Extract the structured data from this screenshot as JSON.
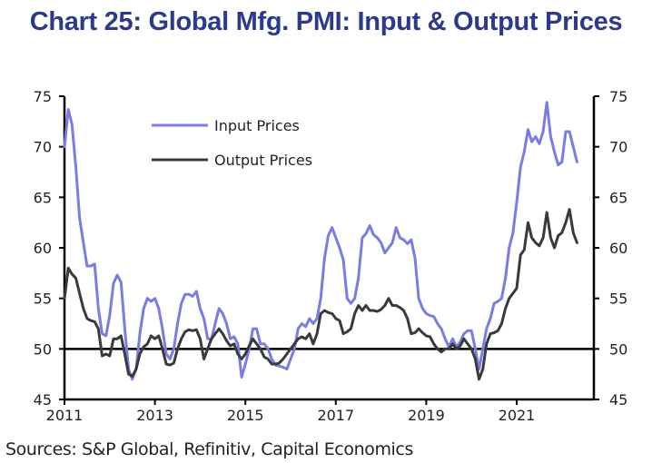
{
  "title": "Chart 25: Global Mfg. PMI: Input & Output Prices",
  "source": "Sources: S&P Global, Refinitiv, Capital Economics",
  "colors": {
    "input": "#7b7be6",
    "output": "#3a3a3a",
    "axis": "#000000",
    "title": "#2b3a8c"
  },
  "chart_data": {
    "type": "line",
    "title": "Chart 25: Global Mfg. PMI: Input & Output Prices",
    "xlabel": "",
    "ylabel": "",
    "x_start": "2011-01",
    "frequency": "monthly",
    "x_tick_labels": [
      "2011",
      "2013",
      "2015",
      "2017",
      "2019",
      "2021"
    ],
    "x_ticks_years": [
      2011,
      2013,
      2015,
      2017,
      2019,
      2021
    ],
    "ylim": [
      45,
      75
    ],
    "y_ticks": [
      45,
      50,
      55,
      60,
      65,
      70,
      75
    ],
    "y2lim": [
      45,
      75
    ],
    "y2_ticks": [
      45,
      50,
      55,
      60,
      65,
      70,
      75
    ],
    "reference_line": 50,
    "grid": false,
    "legend_position": "top-left",
    "series": [
      {
        "name": "Input Prices",
        "values": [
          70.0,
          73.7,
          72.2,
          68.0,
          63.0,
          60.5,
          58.2,
          58.2,
          58.4,
          54.0,
          51.5,
          51.3,
          53.3,
          56.5,
          57.3,
          56.6,
          52.0,
          48.0,
          47.0,
          48.0,
          51.5,
          54.0,
          55.0,
          54.7,
          55.0,
          54.0,
          52.0,
          49.5,
          49.0,
          50.0,
          52.5,
          54.5,
          55.4,
          55.4,
          55.2,
          55.7,
          54.0,
          53.0,
          51.0,
          51.0,
          52.5,
          54.0,
          53.5,
          52.5,
          51.0,
          51.2,
          50.5,
          47.2,
          48.5,
          50.0,
          52.0,
          52.0,
          50.5,
          50.5,
          50.0,
          49.0,
          48.4,
          48.3,
          48.2,
          48.0,
          49.0,
          50.0,
          52.0,
          52.5,
          52.2,
          53.0,
          52.5,
          53.0,
          55.0,
          59.0,
          61.2,
          62.0,
          61.0,
          60.0,
          58.8,
          55.0,
          54.5,
          55.0,
          57.0,
          61.0,
          61.4,
          62.2,
          61.3,
          61.0,
          60.5,
          59.5,
          60.0,
          60.5,
          62.0,
          61.0,
          60.8,
          60.4,
          60.8,
          59.0,
          55.0,
          54.0,
          53.5,
          53.3,
          53.2,
          52.5,
          52.0,
          51.0,
          50.2,
          51.0,
          50.2,
          50.7,
          51.5,
          51.8,
          51.8,
          50.0,
          48.0,
          50.0,
          52.0,
          53.0,
          54.5,
          54.7,
          55.0,
          57.0,
          60.0,
          61.5,
          64.5,
          68.0,
          69.5,
          71.7,
          70.5,
          71.0,
          70.3,
          71.5,
          74.4,
          71.0,
          69.5,
          68.2,
          68.5,
          71.5,
          71.5,
          70.0,
          68.5
        ]
      },
      {
        "name": "Output Prices",
        "values": [
          55.0,
          58.0,
          57.4,
          57.0,
          55.5,
          54.0,
          53.0,
          52.8,
          52.7,
          52.0,
          49.3,
          49.5,
          49.3,
          51.0,
          51.0,
          51.3,
          49.5,
          47.5,
          47.3,
          48.0,
          49.5,
          50.2,
          50.5,
          51.3,
          51.0,
          51.3,
          50.0,
          48.5,
          48.4,
          48.6,
          50.0,
          51.0,
          51.7,
          51.9,
          51.8,
          51.9,
          51.0,
          49.0,
          50.0,
          51.0,
          51.5,
          52.0,
          51.5,
          50.8,
          50.3,
          50.5,
          49.5,
          49.0,
          49.5,
          50.3,
          51.0,
          50.5,
          50.0,
          49.2,
          49.0,
          48.5,
          48.5,
          48.6,
          49.0,
          49.5,
          50.0,
          50.5,
          51.0,
          51.2,
          51.0,
          51.5,
          50.5,
          51.5,
          53.5,
          53.8,
          53.6,
          53.5,
          53.0,
          52.8,
          51.5,
          51.7,
          52.0,
          53.5,
          54.3,
          53.8,
          54.3,
          53.8,
          53.8,
          53.7,
          53.9,
          54.3,
          55.0,
          54.3,
          54.3,
          54.1,
          53.8,
          53.0,
          51.5,
          51.6,
          52.0,
          51.6,
          51.3,
          51.2,
          50.5,
          50.0,
          49.7,
          50.0,
          50.0,
          50.5,
          50.0,
          50.3,
          51.0,
          50.5,
          50.0,
          49.0,
          47.0,
          48.0,
          50.5,
          51.5,
          51.6,
          51.8,
          52.5,
          54.0,
          55.0,
          55.5,
          56.0,
          59.3,
          59.8,
          62.5,
          61.0,
          60.5,
          60.2,
          61.0,
          63.5,
          61.0,
          60.0,
          61.2,
          61.5,
          62.5,
          63.8,
          61.5,
          60.5
        ]
      }
    ]
  }
}
